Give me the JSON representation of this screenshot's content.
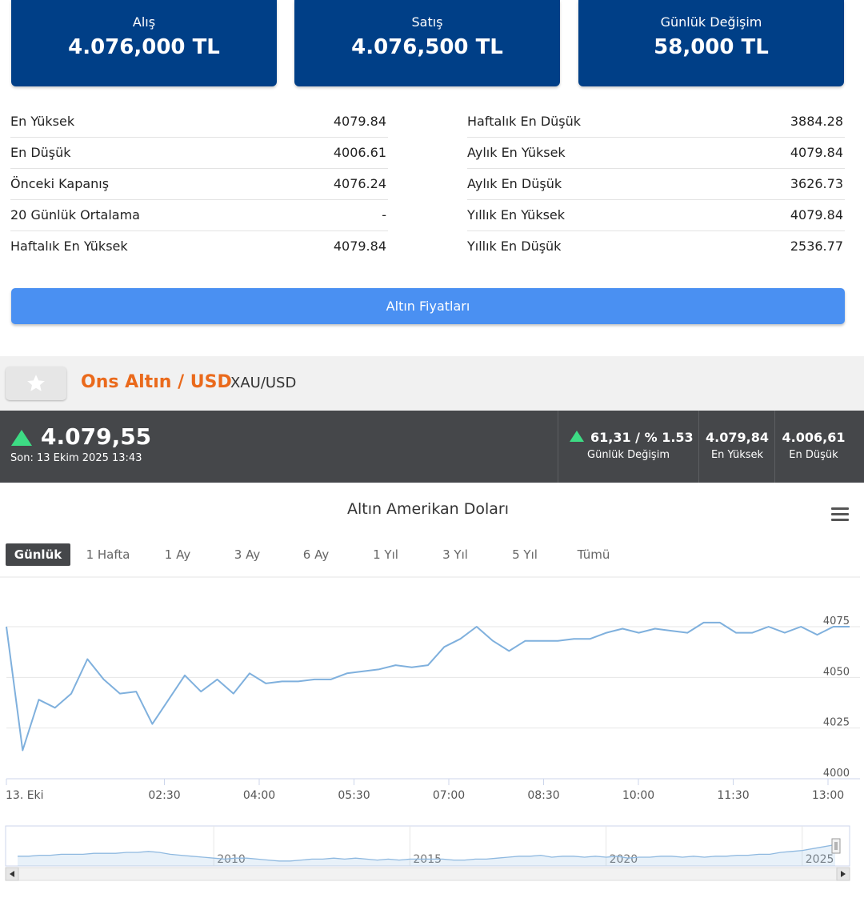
{
  "cards": [
    {
      "label": "Alış",
      "value": "4.076,000 TL"
    },
    {
      "label": "Satış",
      "value": "4.076,500 TL"
    },
    {
      "label": "Günlük Değişim",
      "value": "58,000 TL"
    }
  ],
  "stats_left": [
    {
      "label": "En Yüksek",
      "value": "4079.84"
    },
    {
      "label": "En Düşük",
      "value": "4006.61"
    },
    {
      "label": "Önceki Kapanış",
      "value": "4076.24"
    },
    {
      "label": "20 Günlük Ortalama",
      "value": "-"
    },
    {
      "label": "Haftalık En Yüksek",
      "value": "4079.84"
    }
  ],
  "stats_right": [
    {
      "label": "Haftalık En Düşük",
      "value": "3884.28"
    },
    {
      "label": "Aylık En Yüksek",
      "value": "4079.84"
    },
    {
      "label": "Aylık En Düşük",
      "value": "3626.73"
    },
    {
      "label": "Yıllık En Yüksek",
      "value": "4079.84"
    },
    {
      "label": "Yıllık En Düşük",
      "value": "2536.77"
    }
  ],
  "gold_button": "Altın Fiyatları",
  "instrument": {
    "title": "Ons Altın / USD",
    "symbol": "XAU/USD"
  },
  "quote": {
    "price": "4.079,55",
    "last": "Son: 13 Ekim 2025 13:43",
    "change_value": "61,31 / % 1.53",
    "change_label": "Günlük Değişim",
    "high_value": "4.079,84",
    "high_label": "En Yüksek",
    "low_value": "4.006,61",
    "low_label": "En Düşük",
    "up_color": "#3ddc84"
  },
  "chart_title": "Altın Amerikan Doları",
  "ranges": [
    "Günlük",
    "1 Hafta",
    "1 Ay",
    "3 Ay",
    "6 Ay",
    "1 Yıl",
    "3 Yıl",
    "5 Yıl",
    "Tümü"
  ],
  "active_range": "Günlük",
  "chart_data": {
    "type": "line",
    "title": "Altın Amerikan Doları",
    "x_ticks": [
      "13. Eki",
      "02:30",
      "04:00",
      "05:30",
      "07:00",
      "08:30",
      "10:00",
      "11:30",
      "13:00"
    ],
    "y_ticks": [
      4000,
      4025,
      4050,
      4075
    ],
    "ylim": [
      4000,
      4080
    ],
    "x_range_minutes": [
      0,
      780
    ],
    "line_color": "#7fb0dd",
    "grid": true,
    "series": [
      {
        "x": [
          0,
          15,
          30,
          45,
          60,
          75,
          90,
          105,
          120,
          135,
          150,
          165,
          180,
          195,
          210,
          225,
          240,
          255,
          270,
          285,
          300,
          315,
          330,
          345,
          360,
          375,
          390,
          405,
          420,
          435,
          450,
          465,
          480,
          495,
          510,
          525,
          540,
          555,
          570,
          585,
          600,
          615,
          630,
          645,
          660,
          675,
          690,
          705,
          720,
          735,
          750,
          765,
          780
        ],
        "y": [
          4075,
          4014,
          4039,
          4035,
          4042,
          4059,
          4049,
          4042,
          4043,
          4027,
          4039,
          4051,
          4043,
          4049,
          4042,
          4052,
          4047,
          4048,
          4048,
          4049,
          4049,
          4052,
          4053,
          4054,
          4056,
          4055,
          4056,
          4065,
          4069,
          4075,
          4068,
          4063,
          4068,
          4068,
          4068,
          4069,
          4069,
          4072,
          4074,
          4072,
          4074,
          4073,
          4072,
          4077,
          4077,
          4072,
          4072,
          4075,
          4072,
          4075,
          4071,
          4075,
          4075
        ]
      }
    ]
  },
  "navigator": {
    "labels": [
      "2010",
      "2015",
      "2020",
      "2025"
    ],
    "label_years": [
      2010,
      2015,
      2020,
      2025
    ],
    "year_range": [
      2005,
      2025.8
    ],
    "values": [
      14,
      14,
      13,
      13,
      12,
      12,
      12,
      11,
      11,
      11,
      10,
      10,
      9,
      10,
      12,
      13,
      14,
      15,
      16,
      17,
      16,
      16,
      17,
      18,
      19,
      19,
      18,
      17,
      17,
      16,
      17,
      16,
      17,
      18,
      17,
      18,
      17,
      17,
      17,
      17,
      18,
      18,
      17,
      17,
      16,
      15,
      14,
      14,
      13,
      15,
      14,
      14,
      15,
      14,
      15,
      14,
      16,
      15,
      15,
      14,
      14,
      15,
      14,
      15,
      14,
      14,
      13,
      13,
      12,
      12,
      10,
      9,
      8,
      6,
      4,
      2
    ]
  }
}
